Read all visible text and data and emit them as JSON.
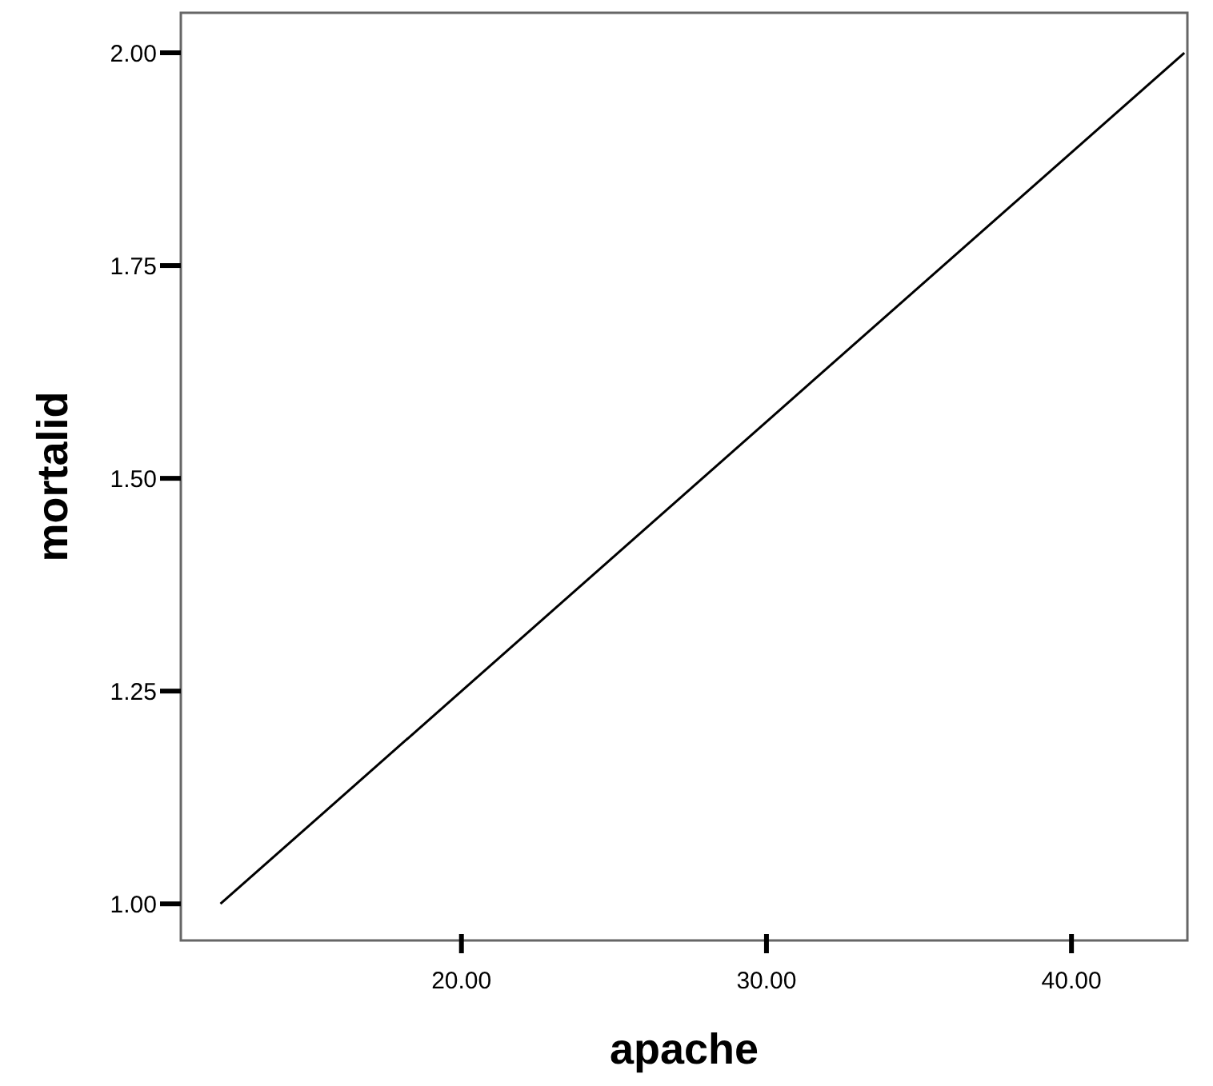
{
  "chart_data": {
    "type": "line",
    "xlabel": "apache",
    "ylabel": "mortalid",
    "x": [
      12.1,
      43.7
    ],
    "series": [
      {
        "color": "#000000",
        "values": [
          1.0,
          2.0
        ]
      }
    ],
    "xlim": [
      10.8,
      43.8
    ],
    "ylim": [
      0.957,
      2.047
    ],
    "xticks": [
      {
        "value": 20,
        "label": "20.00"
      },
      {
        "value": 30,
        "label": "30.00"
      },
      {
        "value": 40,
        "label": "40.00"
      }
    ],
    "yticks": [
      {
        "value": 1,
        "label": "1.00"
      },
      {
        "value": 1.25,
        "label": "1.25"
      },
      {
        "value": 1.5,
        "label": "1.50"
      },
      {
        "value": 1.75,
        "label": "1.75"
      },
      {
        "value": 2,
        "label": "2.00"
      }
    ],
    "grid": false
  }
}
